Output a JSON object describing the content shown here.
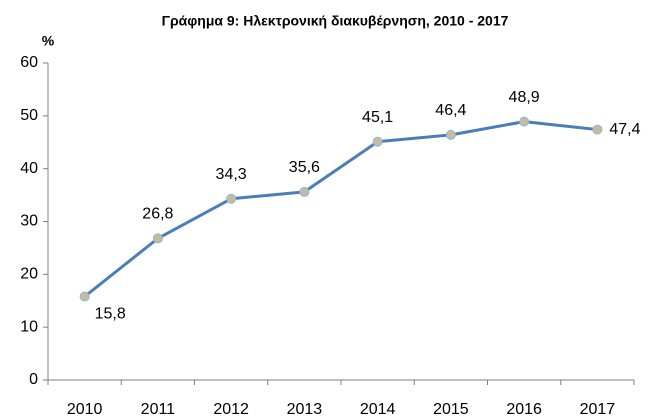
{
  "chart_data": {
    "type": "line",
    "title": "Γράφημα 9: Ηλεκτρονική διακυβέρνηση, 2010 - 2017",
    "y_label": "%",
    "categories": [
      "2010",
      "2011",
      "2012",
      "2013",
      "2014",
      "2015",
      "2016",
      "2017"
    ],
    "series": [
      {
        "name": "Ηλεκτρονική διακυβέρνηση",
        "color": "#4a7ebb",
        "marker_color": "#c4bd97",
        "values": [
          15.8,
          26.8,
          34.3,
          35.6,
          45.1,
          46.4,
          48.9,
          47.4
        ],
        "value_labels": [
          "15,8",
          "26,8",
          "34,3",
          "35,6",
          "45,1",
          "46,4",
          "48,9",
          "47,4"
        ]
      }
    ],
    "ylim": [
      0,
      60
    ],
    "yticks": [
      0,
      10,
      20,
      30,
      40,
      50,
      60
    ],
    "grid": false
  }
}
